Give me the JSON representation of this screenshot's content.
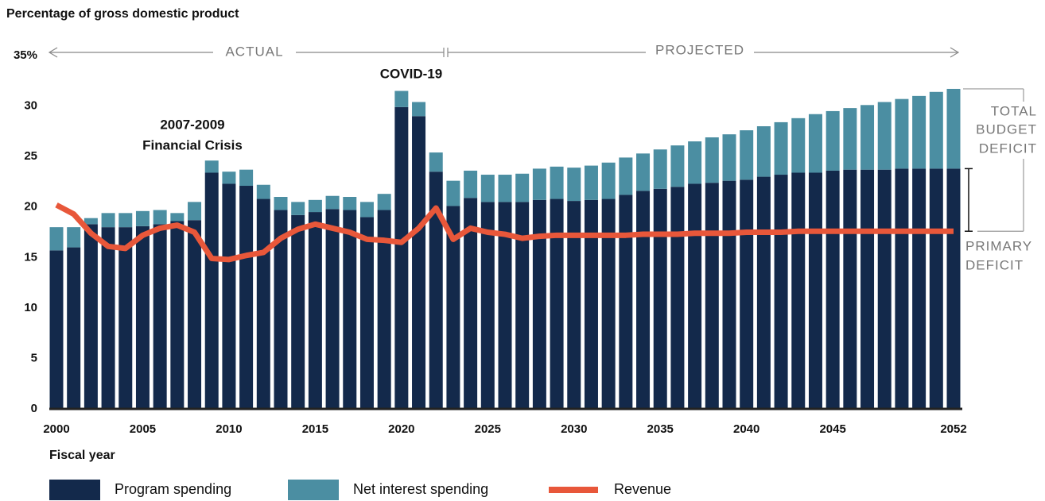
{
  "chart_data": {
    "type": "bar",
    "ylabel": "Percentage of gross domestic product",
    "xlabel": "Fiscal year",
    "x": [
      2000,
      2001,
      2002,
      2003,
      2004,
      2005,
      2006,
      2007,
      2008,
      2009,
      2010,
      2011,
      2012,
      2013,
      2014,
      2015,
      2016,
      2017,
      2018,
      2019,
      2020,
      2021,
      2022,
      2023,
      2024,
      2025,
      2026,
      2027,
      2028,
      2029,
      2030,
      2031,
      2032,
      2033,
      2034,
      2035,
      2036,
      2037,
      2038,
      2039,
      2040,
      2041,
      2042,
      2043,
      2044,
      2045,
      2046,
      2047,
      2048,
      2049,
      2050,
      2051,
      2052
    ],
    "xlim": [
      2000,
      2052
    ],
    "xticks": [
      2000,
      2005,
      2010,
      2015,
      2020,
      2025,
      2030,
      2035,
      2040,
      2045,
      2052
    ],
    "ylim": [
      0,
      35
    ],
    "yticks": [
      0,
      5,
      10,
      15,
      20,
      25,
      30,
      {
        "value": 35,
        "label": "35%"
      }
    ],
    "stacked": true,
    "series": [
      {
        "name": "Program spending",
        "type": "bar",
        "color": "#13294b",
        "values": [
          15.7,
          16.0,
          18.3,
          18.0,
          18.0,
          18.1,
          18.3,
          18.6,
          18.7,
          23.4,
          22.3,
          22.1,
          20.8,
          19.7,
          19.2,
          19.5,
          19.8,
          19.7,
          19.0,
          19.7,
          29.9,
          29.0,
          23.5,
          20.1,
          20.9,
          20.5,
          20.5,
          20.5,
          20.7,
          20.8,
          20.6,
          20.7,
          20.8,
          21.2,
          21.6,
          21.8,
          22.0,
          22.3,
          22.4,
          22.6,
          22.7,
          23.0,
          23.2,
          23.4,
          23.4,
          23.6,
          23.7,
          23.7,
          23.7,
          23.8,
          23.8,
          23.8,
          23.8
        ]
      },
      {
        "name": "Net interest spending",
        "type": "bar",
        "color": "#4b8ea2",
        "values": [
          2.3,
          2.0,
          0.6,
          1.4,
          1.4,
          1.5,
          1.4,
          0.8,
          1.8,
          1.2,
          1.2,
          1.6,
          1.4,
          1.3,
          1.3,
          1.2,
          1.3,
          1.3,
          1.5,
          1.6,
          1.6,
          1.4,
          1.9,
          2.5,
          2.7,
          2.7,
          2.7,
          2.8,
          3.1,
          3.2,
          3.3,
          3.4,
          3.6,
          3.7,
          3.7,
          3.9,
          4.1,
          4.2,
          4.5,
          4.6,
          4.9,
          5.0,
          5.2,
          5.4,
          5.8,
          5.9,
          6.1,
          6.4,
          6.7,
          6.9,
          7.2,
          7.6,
          7.9
        ]
      },
      {
        "name": "Revenue",
        "type": "line",
        "color": "#e8573a",
        "values": [
          20.2,
          19.3,
          17.4,
          16.1,
          15.9,
          17.2,
          17.9,
          18.2,
          17.5,
          14.9,
          14.8,
          15.2,
          15.5,
          16.9,
          17.8,
          18.3,
          17.9,
          17.5,
          16.8,
          16.7,
          16.5,
          17.9,
          19.9,
          16.8,
          17.9,
          17.5,
          17.3,
          16.9,
          17.1,
          17.2,
          17.2,
          17.2,
          17.2,
          17.2,
          17.3,
          17.3,
          17.3,
          17.4,
          17.4,
          17.4,
          17.5,
          17.5,
          17.5,
          17.6,
          17.6,
          17.6,
          17.6,
          17.6,
          17.6,
          17.6,
          17.6,
          17.6,
          17.6
        ]
      }
    ],
    "annotations": {
      "actual": "ACTUAL",
      "projected": "PROJECTED",
      "covid": "COVID-19",
      "crisis": [
        "2007-2009",
        "Financial Crisis"
      ],
      "total_deficit": [
        "TOTAL",
        "BUDGET",
        "DEFICIT"
      ],
      "primary_deficit": [
        "PRIMARY",
        "DEFICIT"
      ]
    }
  }
}
